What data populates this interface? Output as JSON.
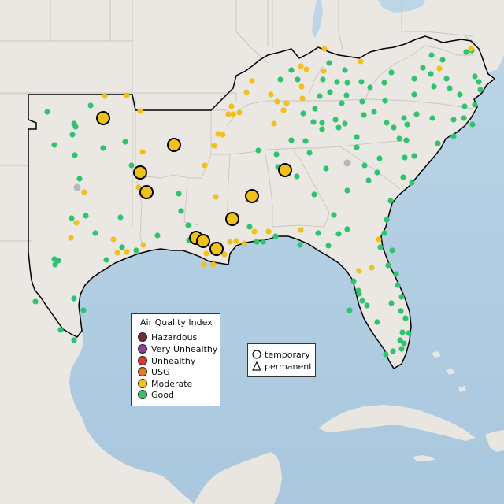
{
  "legend": {
    "title": "Air Quality Index",
    "items": [
      {
        "label": "Hazardous",
        "color": "#7e2a36"
      },
      {
        "label": "Very Unhealthy",
        "color": "#8f3f97"
      },
      {
        "label": "Unhealthy",
        "color": "#e5342b"
      },
      {
        "label": "USG",
        "color": "#e8791d"
      },
      {
        "label": "Moderate",
        "color": "#f0c01b"
      },
      {
        "label": "Good",
        "color": "#2ec36e"
      }
    ]
  },
  "site_types": {
    "temporary_label": "temporary",
    "permanent_label": "permanent"
  },
  "colors": {
    "water": "#b9d3e5",
    "land": "#ede9e4",
    "offmap_land": "#e7e3de",
    "boundary": "#c9c4bf",
    "region_outline": "#000000",
    "no_data": "#b7b7b7"
  },
  "large_moderate_sites": [
    [
      131,
      150
    ],
    [
      221,
      184
    ],
    [
      178,
      219
    ],
    [
      186,
      244
    ],
    [
      362,
      216
    ],
    [
      320,
      249
    ],
    [
      295,
      278
    ],
    [
      249,
      302
    ],
    [
      258,
      306
    ],
    [
      275,
      316
    ]
  ],
  "small_moderate_sites": [
    [
      133,
      122
    ],
    [
      161,
      121
    ],
    [
      178,
      141
    ],
    [
      181,
      193
    ],
    [
      176,
      238
    ],
    [
      107,
      244
    ],
    [
      90,
      302
    ],
    [
      97,
      283
    ],
    [
      144,
      304
    ],
    [
      182,
      311
    ],
    [
      149,
      321
    ],
    [
      161,
      320
    ],
    [
      260,
      210
    ],
    [
      277,
      170
    ],
    [
      272,
      185
    ],
    [
      283,
      171
    ],
    [
      274,
      250
    ],
    [
      290,
      145
    ],
    [
      296,
      145
    ],
    [
      344,
      120
    ],
    [
      352,
      129
    ],
    [
      364,
      131
    ],
    [
      348,
      157
    ],
    [
      360,
      140
    ],
    [
      382,
      84
    ],
    [
      389,
      88
    ],
    [
      412,
      62
    ],
    [
      458,
      78
    ],
    [
      411,
      90
    ],
    [
      384,
      125
    ],
    [
      383,
      110
    ],
    [
      323,
      294
    ],
    [
      341,
      294
    ],
    [
      382,
      292
    ],
    [
      310,
      309
    ],
    [
      292,
      307
    ],
    [
      300,
      306
    ],
    [
      262,
      322
    ],
    [
      271,
      336
    ],
    [
      285,
      323
    ],
    [
      456,
      344
    ],
    [
      472,
      340
    ],
    [
      481,
      304
    ],
    [
      313,
      117
    ],
    [
      304,
      143
    ],
    [
      558,
      87
    ],
    [
      598,
      62
    ],
    [
      294,
      135
    ],
    [
      259,
      336
    ],
    [
      320,
      103
    ]
  ],
  "good_sites": [
    [
      60,
      142
    ],
    [
      94,
      157
    ],
    [
      96,
      161
    ],
    [
      92,
      171
    ],
    [
      69,
      184
    ],
    [
      95,
      197
    ],
    [
      115,
      134
    ],
    [
      159,
      180
    ],
    [
      131,
      188
    ],
    [
      167,
      210
    ],
    [
      109,
      274
    ],
    [
      101,
      227
    ],
    [
      91,
      277
    ],
    [
      121,
      296
    ],
    [
      135,
      330
    ],
    [
      155,
      314
    ],
    [
      153,
      276
    ],
    [
      200,
      299
    ],
    [
      173,
      318
    ],
    [
      69,
      329
    ],
    [
      70,
      336
    ],
    [
      74,
      331
    ],
    [
      45,
      383
    ],
    [
      94,
      379
    ],
    [
      106,
      394
    ],
    [
      77,
      419
    ],
    [
      94,
      432
    ],
    [
      227,
      246
    ],
    [
      230,
      268
    ],
    [
      239,
      286
    ],
    [
      240,
      305
    ],
    [
      326,
      307
    ],
    [
      334,
      307
    ],
    [
      350,
      300
    ],
    [
      317,
      288
    ],
    [
      370,
      178
    ],
    [
      351,
      196
    ],
    [
      353,
      212
    ],
    [
      328,
      191
    ],
    [
      393,
      194
    ],
    [
      388,
      179
    ],
    [
      377,
      224
    ],
    [
      399,
      247
    ],
    [
      424,
      273
    ],
    [
      441,
      291
    ],
    [
      414,
      214
    ],
    [
      441,
      242
    ],
    [
      479,
      219
    ],
    [
      463,
      210
    ],
    [
      468,
      229
    ],
    [
      482,
      201
    ],
    [
      453,
      187
    ],
    [
      409,
      156
    ],
    [
      409,
      164
    ],
    [
      426,
      152
    ],
    [
      430,
      162
    ],
    [
      438,
      157
    ],
    [
      453,
      174
    ],
    [
      462,
      146
    ],
    [
      475,
      142
    ],
    [
      491,
      156
    ],
    [
      500,
      162
    ],
    [
      507,
      176
    ],
    [
      513,
      150
    ],
    [
      517,
      158
    ],
    [
      529,
      145
    ],
    [
      549,
      150
    ],
    [
      576,
      152
    ],
    [
      589,
      150
    ],
    [
      576,
      173
    ],
    [
      556,
      182
    ],
    [
      516,
      178
    ],
    [
      514,
      200
    ],
    [
      512,
      225
    ],
    [
      526,
      198
    ],
    [
      523,
      232
    ],
    [
      496,
      255
    ],
    [
      491,
      279
    ],
    [
      488,
      296
    ],
    [
      483,
      314
    ],
    [
      498,
      318
    ],
    [
      493,
      337
    ],
    [
      503,
      348
    ],
    [
      505,
      362
    ],
    [
      510,
      377
    ],
    [
      497,
      385
    ],
    [
      509,
      395
    ],
    [
      515,
      404
    ],
    [
      511,
      422
    ],
    [
      508,
      432
    ],
    [
      513,
      436
    ],
    [
      519,
      423
    ],
    [
      510,
      443
    ],
    [
      499,
      446
    ],
    [
      490,
      450
    ],
    [
      479,
      409
    ],
    [
      466,
      388
    ],
    [
      455,
      369
    ],
    [
      460,
      382
    ],
    [
      449,
      357
    ],
    [
      456,
      373
    ],
    [
      444,
      394
    ],
    [
      417,
      312
    ],
    [
      404,
      296
    ],
    [
      381,
      311
    ],
    [
      398,
      155
    ],
    [
      400,
      138
    ],
    [
      406,
      122
    ],
    [
      434,
      131
    ],
    [
      460,
      129
    ],
    [
      489,
      128
    ],
    [
      441,
      105
    ],
    [
      459,
      104
    ],
    [
      488,
      105
    ],
    [
      497,
      92
    ],
    [
      526,
      100
    ],
    [
      547,
      94
    ],
    [
      567,
      100
    ],
    [
      592,
      66
    ],
    [
      599,
      64
    ],
    [
      603,
      97
    ],
    [
      608,
      104
    ],
    [
      610,
      114
    ],
    [
      562,
      76
    ],
    [
      410,
      101
    ],
    [
      419,
      117
    ],
    [
      440,
      121
    ],
    [
      385,
      144
    ],
    [
      356,
      101
    ],
    [
      370,
      89
    ],
    [
      418,
      80
    ],
    [
      378,
      101
    ],
    [
      438,
      89
    ],
    [
      428,
      104
    ],
    [
      470,
      111
    ],
    [
      526,
      120
    ],
    [
      551,
      110
    ],
    [
      571,
      112
    ],
    [
      584,
      120
    ],
    [
      590,
      135
    ],
    [
      603,
      133
    ],
    [
      600,
      158
    ],
    [
      537,
      86
    ],
    [
      548,
      70
    ],
    [
      430,
      297
    ]
  ],
  "no_data_sites": [
    [
      98,
      238
    ],
    [
      441,
      207
    ]
  ]
}
